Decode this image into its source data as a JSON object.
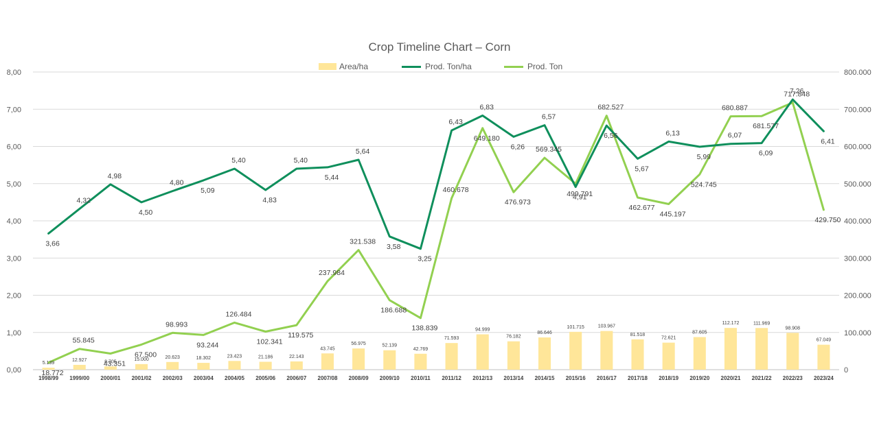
{
  "chart_data": {
    "type": "bar+line",
    "title": "Crop Timeline Chart – Corn",
    "categories": [
      "1998/99",
      "1999/00",
      "2000/01",
      "2001/02",
      "2002/03",
      "2003/04",
      "2004/05",
      "2005/06",
      "2006/07",
      "2007/08",
      "2008/09",
      "2009/10",
      "2010/11",
      "2011/12",
      "2012/13",
      "2013/14",
      "2014/15",
      "2015/16",
      "2016/17",
      "2017/18",
      "2018/19",
      "2019/20",
      "2020/21",
      "2021/22",
      "2022/23",
      "2023/24"
    ],
    "left_axis": {
      "min": 0,
      "max": 8,
      "step": 1,
      "tick_labels": [
        "0,00",
        "1,00",
        "2,00",
        "3,00",
        "4,00",
        "5,00",
        "6,00",
        "7,00",
        "8,00"
      ]
    },
    "right_axis": {
      "min": 0,
      "max": 800000,
      "step": 100000,
      "tick_labels": [
        "0",
        "100.000",
        "200.000",
        "300.000",
        "400.000",
        "500.000",
        "600.000",
        "700.000",
        "800.000"
      ]
    },
    "grid": true,
    "legend_position": "top",
    "series": [
      {
        "name": "Area/ha",
        "kind": "bar",
        "axis": "right",
        "color": "#FFE699",
        "values": [
          5139,
          12927,
          8705,
          15000,
          20623,
          18302,
          23423,
          21186,
          22143,
          43745,
          56975,
          52139,
          42769,
          71593,
          94999,
          76182,
          86646,
          101715,
          103967,
          81518,
          72621,
          87605,
          112172,
          111969,
          98908,
          67049
        ],
        "labels": [
          "5.139",
          "12.927",
          "8.705",
          "15.000",
          "20.623",
          "18.302",
          "23.423",
          "21.186",
          "22.143",
          "43.745",
          "56.975",
          "52.139",
          "42.769",
          "71.593",
          "94.999",
          "76.182",
          "86.646",
          "101.715",
          "103.967",
          "81.518",
          "72.621",
          "87.605",
          "112.172",
          "111.969",
          "98.908",
          "67.049"
        ]
      },
      {
        "name": "Prod. Ton/ha",
        "kind": "line",
        "axis": "left",
        "color": "#0F8F5C",
        "values": [
          3.66,
          4.32,
          4.98,
          4.5,
          4.8,
          5.09,
          5.4,
          4.83,
          5.4,
          5.44,
          5.64,
          3.58,
          3.25,
          6.43,
          6.83,
          6.26,
          6.57,
          4.91,
          6.56,
          5.67,
          6.13,
          5.99,
          6.07,
          6.09,
          7.26,
          6.41
        ],
        "labels": [
          "3,66",
          "4,32",
          "4,98",
          "4,50",
          "4,80",
          "5,09",
          "5,40",
          "4,83",
          "5,40",
          "5,44",
          "5,64",
          "3,58",
          "3,25",
          "6,43",
          "6,83",
          "6,26",
          "6,57",
          "4,91",
          "6,56",
          "5,67",
          "6,13",
          "5,99",
          "6,07",
          "6,09",
          "7,26",
          "6,41"
        ]
      },
      {
        "name": "Prod. Ton",
        "kind": "line",
        "axis": "right",
        "color": "#92D050",
        "values": [
          18772,
          55845,
          43351,
          67500,
          98993,
          93244,
          126484,
          102341,
          119575,
          237984,
          321538,
          186688,
          138839,
          460678,
          649180,
          476973,
          569345,
          499791,
          682527,
          462677,
          445197,
          524745,
          680887,
          681577,
          717848,
          429750
        ],
        "labels": [
          "18.772",
          "55.845",
          "43.351",
          "67.500",
          "98.993",
          "93.244",
          "126.484",
          "102.341",
          "119.575",
          "237.984",
          "321.538",
          "186.688",
          "138.839",
          "460.678",
          "649.180",
          "476.973",
          "569.345",
          "499.791",
          "682.527",
          "462.677",
          "445.197",
          "524.745",
          "680.887",
          "681.577",
          "717.848",
          "429.750"
        ]
      }
    ]
  }
}
